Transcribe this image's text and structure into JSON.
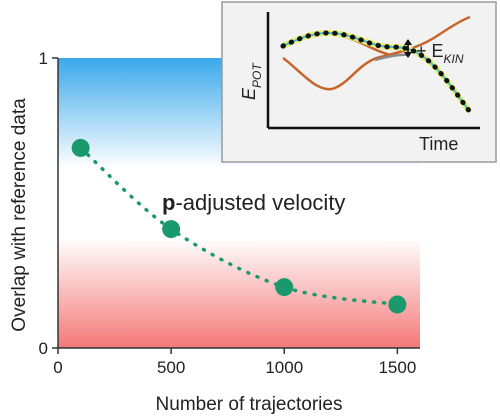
{
  "chart_data": {
    "type": "scatter",
    "xlabel": "Number of trajectories",
    "ylabel": "Overlap with reference data",
    "xlim": [
      0,
      1600
    ],
    "ylim": [
      0,
      1
    ],
    "xticks": [
      0,
      500,
      1000,
      1500
    ],
    "yticks": [
      0,
      1
    ],
    "series": [
      {
        "name": "p-adjusted velocity",
        "x": [
          100,
          500,
          1000,
          1500
        ],
        "y": [
          0.69,
          0.41,
          0.21,
          0.15
        ],
        "color": "#1a9a6c"
      }
    ],
    "annotations": [
      {
        "bold": "p",
        "text": "-adjusted velocity"
      }
    ],
    "background_gradient": {
      "top": "#3aa8ea",
      "middle": "#ffffff",
      "bottom": "#f47878"
    },
    "inset": {
      "ylabel_main": "E",
      "ylabel_sub": "POT",
      "xlabel": "Time",
      "annotation_prefix": "+ E",
      "annotation_sub": "KIN",
      "curve_colors": {
        "orange": "#c8652a",
        "gray": "#8a8a8a",
        "dotted": "#222222",
        "highlight": "#e8f070",
        "teal": "#4cb8d8"
      }
    }
  }
}
